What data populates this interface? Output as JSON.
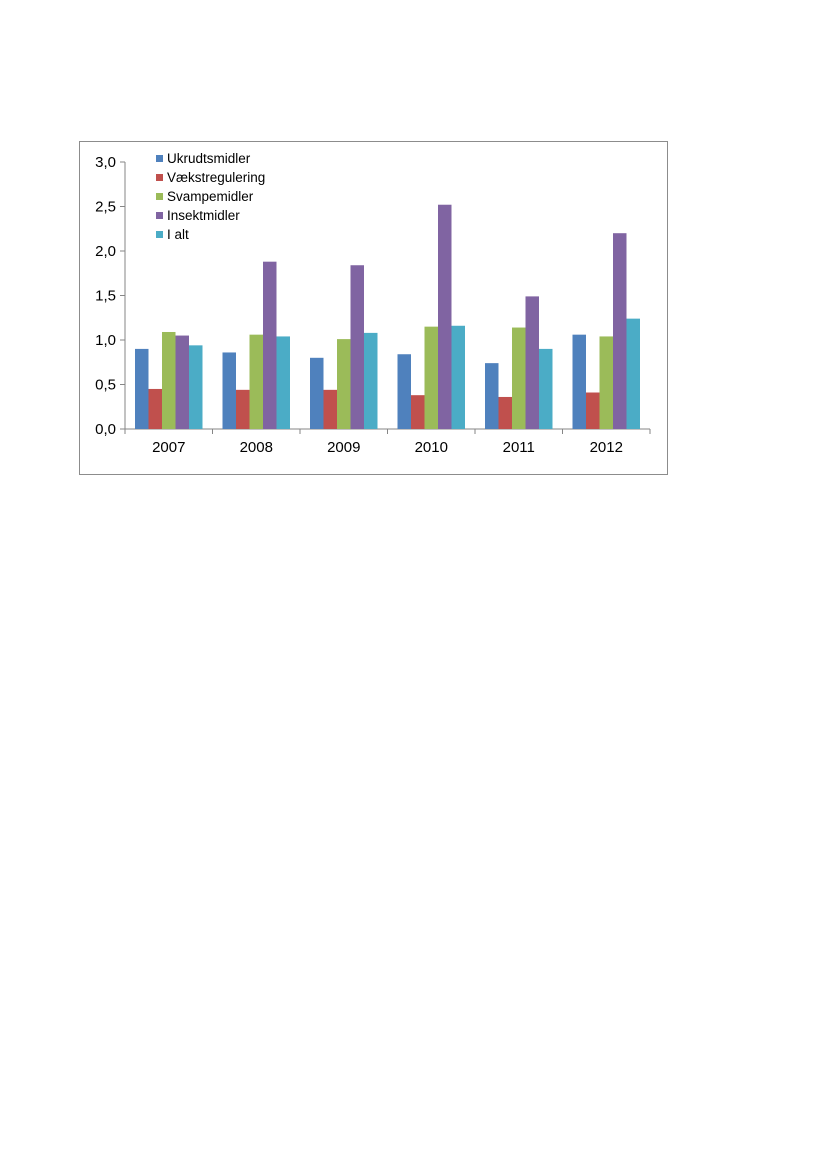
{
  "chart_data": {
    "type": "bar",
    "categories": [
      "2007",
      "2008",
      "2009",
      "2010",
      "2011",
      "2012"
    ],
    "series": [
      {
        "name": "Ukrudtsmidler",
        "color": "#4f81bd",
        "values": [
          0.9,
          0.86,
          0.8,
          0.84,
          0.74,
          1.06
        ]
      },
      {
        "name": "Vækstregulering",
        "color": "#c0504d",
        "values": [
          0.45,
          0.44,
          0.44,
          0.38,
          0.36,
          0.41
        ]
      },
      {
        "name": "Svampemidler",
        "color": "#9bbb59",
        "values": [
          1.09,
          1.06,
          1.01,
          1.15,
          1.14,
          1.04
        ]
      },
      {
        "name": "Insektmidler",
        "color": "#8064a2",
        "values": [
          1.05,
          1.88,
          1.84,
          2.52,
          1.49,
          2.2
        ]
      },
      {
        "name": "I alt",
        "color": "#4bacc6",
        "values": [
          0.94,
          1.04,
          1.08,
          1.16,
          0.9,
          1.24
        ]
      }
    ],
    "y_ticks": [
      "0,0",
      "0,5",
      "1,0",
      "1,5",
      "2,0",
      "2,5",
      "3,0"
    ],
    "ylim": [
      0,
      3.0
    ],
    "grid": false,
    "legend_position": "top-left",
    "title": "",
    "xlabel": "",
    "ylabel": ""
  }
}
